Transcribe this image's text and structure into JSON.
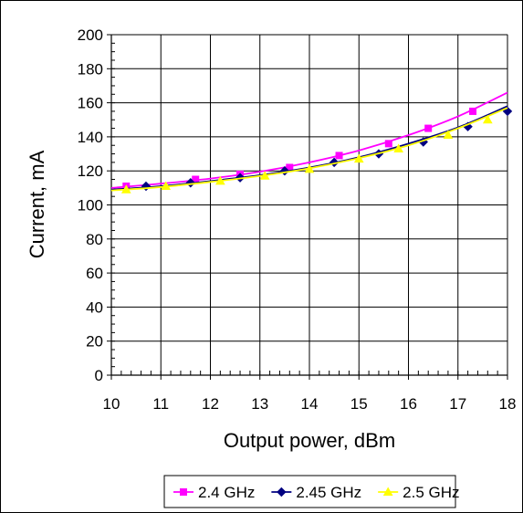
{
  "chart_data": {
    "type": "line",
    "title": "",
    "xlabel": "Output power, dBm",
    "ylabel": "Current, mA",
    "xlim": [
      10,
      18
    ],
    "ylim": [
      0,
      200
    ],
    "x_ticks": [
      10,
      11,
      12,
      13,
      14,
      15,
      16,
      17,
      18
    ],
    "y_ticks": [
      0,
      20,
      40,
      60,
      80,
      100,
      120,
      140,
      160,
      180,
      200
    ],
    "grid": true,
    "legend_position": "bottom",
    "series": [
      {
        "name": "2.4 GHz",
        "color": "#ff00ff",
        "marker": "square",
        "points": [
          [
            10.3,
            111
          ],
          [
            11.7,
            115
          ],
          [
            12.6,
            118
          ],
          [
            13.6,
            122
          ],
          [
            14.6,
            129
          ],
          [
            15.6,
            136
          ],
          [
            16.4,
            145
          ],
          [
            17.3,
            155
          ]
        ],
        "trend": [
          [
            10,
            110
          ],
          [
            11,
            112.5
          ],
          [
            12,
            115.5
          ],
          [
            13,
            119.5
          ],
          [
            14,
            125
          ],
          [
            15,
            132
          ],
          [
            16,
            141
          ],
          [
            17,
            152
          ],
          [
            18,
            166
          ]
        ]
      },
      {
        "name": "2.45 GHz",
        "color": "#000080",
        "marker": "diamond",
        "points": [
          [
            10.7,
            111
          ],
          [
            11.6,
            113
          ],
          [
            12.6,
            116
          ],
          [
            13.5,
            120
          ],
          [
            14.5,
            125
          ],
          [
            15.4,
            130
          ],
          [
            16.3,
            137
          ],
          [
            17.2,
            146
          ],
          [
            18.0,
            155
          ]
        ],
        "trend": [
          [
            10,
            109
          ],
          [
            11,
            111
          ],
          [
            12,
            114
          ],
          [
            13,
            117.5
          ],
          [
            14,
            122
          ],
          [
            15,
            128
          ],
          [
            16,
            136
          ],
          [
            17,
            145.5
          ],
          [
            18,
            158
          ]
        ]
      },
      {
        "name": "2.5 GHz",
        "color": "#ffff00",
        "marker": "triangle",
        "points": [
          [
            10.3,
            109
          ],
          [
            11.1,
            111
          ],
          [
            12.2,
            114
          ],
          [
            13.1,
            117
          ],
          [
            14.0,
            121
          ],
          [
            15.0,
            127
          ],
          [
            15.8,
            133
          ],
          [
            16.8,
            141
          ],
          [
            17.6,
            150
          ]
        ],
        "trend": [
          [
            10,
            108.5
          ],
          [
            11,
            110.5
          ],
          [
            12,
            113.5
          ],
          [
            13,
            117
          ],
          [
            14,
            121.5
          ],
          [
            15,
            127.5
          ],
          [
            16,
            135
          ],
          [
            17,
            145
          ],
          [
            18,
            157
          ]
        ]
      }
    ]
  }
}
